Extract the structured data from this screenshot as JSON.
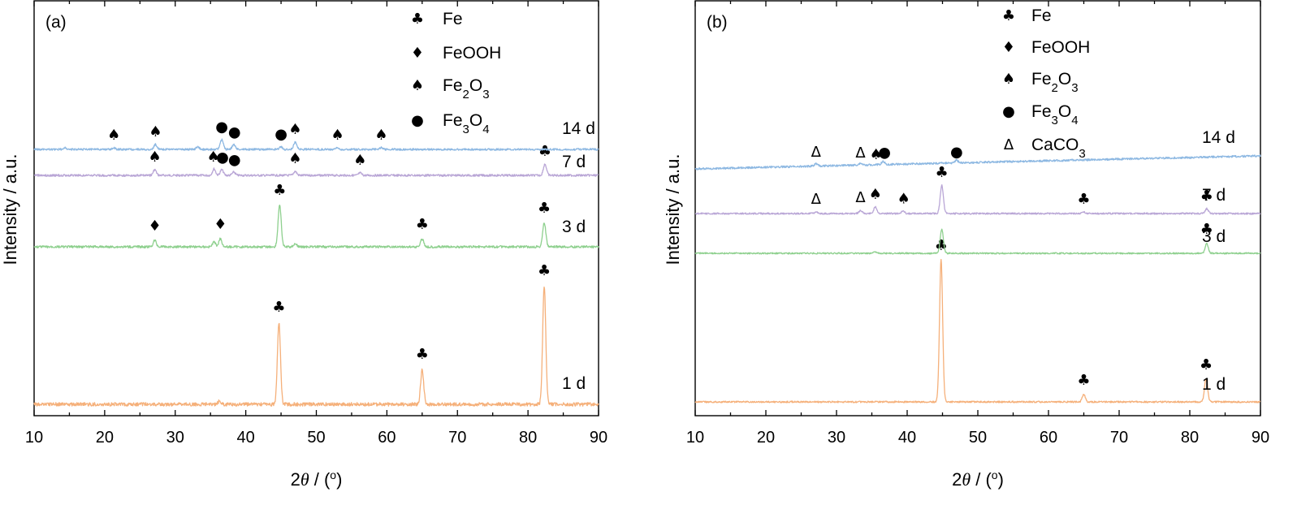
{
  "chart_data": [
    {
      "panel_label": "(a)",
      "type": "line",
      "xlabel_main": "2",
      "xlabel_theta": "θ",
      "xlabel_unit": " / (",
      "xlabel_deg": "o",
      "xlabel_close": ")",
      "ylabel": "Intensity / a.u.",
      "xlim": [
        10,
        90
      ],
      "xticks": [
        "10",
        "20",
        "30",
        "40",
        "50",
        "60",
        "70",
        "80",
        "90"
      ],
      "y_ticks_shown": false,
      "grid": false,
      "legend_placement": "top-center",
      "legend": [
        {
          "symbol": "♣",
          "text": "Fe",
          "sub": []
        },
        {
          "symbol": "♦",
          "text": "FeOOH",
          "sub": []
        },
        {
          "symbol": "♠",
          "text": "Fe2O3",
          "sub": [
            [
              "Fe",
              ""
            ],
            [
              "2",
              "s"
            ],
            [
              "O",
              ""
            ],
            [
              "3",
              "s"
            ]
          ]
        },
        {
          "symbol": "●",
          "text": "Fe3O4",
          "sub": [
            [
              "Fe",
              ""
            ],
            [
              "3",
              "s"
            ],
            [
              "O",
              ""
            ],
            [
              "4",
              "s"
            ]
          ]
        }
      ],
      "series": [
        {
          "name": "1 d",
          "color": "#F5B07A",
          "offset": 0,
          "peaks": [
            [
              36.3,
              4
            ],
            [
              44.7,
              100
            ],
            [
              65.0,
              42
            ],
            [
              82.3,
              145
            ]
          ],
          "markers": [
            [
              44.7,
              "♣"
            ],
            [
              65.0,
              "♣"
            ],
            [
              82.3,
              "♣"
            ]
          ]
        },
        {
          "name": "3 d",
          "color": "#8ED08E",
          "offset": 0,
          "peaks": [
            [
              27.1,
              8
            ],
            [
              35.5,
              6
            ],
            [
              36.4,
              10
            ],
            [
              44.8,
              52
            ],
            [
              47.0,
              4
            ],
            [
              65.0,
              10
            ],
            [
              82.3,
              30
            ]
          ],
          "markers": [
            [
              27.1,
              "♦"
            ],
            [
              36.4,
              "♦"
            ],
            [
              44.8,
              "♣"
            ],
            [
              65.0,
              "♣"
            ],
            [
              82.3,
              "♣"
            ]
          ]
        },
        {
          "name": "7 d",
          "color": "#B9A6D6",
          "offset": 0,
          "peaks": [
            [
              27.1,
              7
            ],
            [
              35.5,
              8
            ],
            [
              36.6,
              7
            ],
            [
              38.3,
              4
            ],
            [
              47.0,
              5
            ],
            [
              56.2,
              3
            ],
            [
              82.4,
              14
            ]
          ],
          "markers": [
            [
              27.1,
              "♠"
            ],
            [
              35.4,
              "♠"
            ],
            [
              36.7,
              "●"
            ],
            [
              38.4,
              "●"
            ],
            [
              47.0,
              "♠"
            ],
            [
              56.2,
              "♠"
            ],
            [
              82.4,
              "♣"
            ]
          ]
        },
        {
          "name": "14 d",
          "color": "#8DB8E2",
          "offset": 0,
          "peaks": [
            [
              14.4,
              2
            ],
            [
              21.3,
              2
            ],
            [
              27.2,
              6
            ],
            [
              33.2,
              3
            ],
            [
              36.6,
              12
            ],
            [
              38.3,
              6
            ],
            [
              45.0,
              3
            ],
            [
              47.0,
              9
            ],
            [
              53.0,
              2
            ],
            [
              59.2,
              2
            ]
          ],
          "markers": [
            [
              21.3,
              "♠"
            ],
            [
              27.2,
              "♠"
            ],
            [
              36.6,
              "●"
            ],
            [
              38.4,
              "●"
            ],
            [
              45.0,
              "●"
            ],
            [
              47.0,
              "♠"
            ],
            [
              53.0,
              "♠"
            ],
            [
              59.2,
              "♠"
            ]
          ]
        }
      ]
    },
    {
      "panel_label": "(b)",
      "type": "line",
      "xlabel_main": "2",
      "xlabel_theta": "θ",
      "xlabel_unit": " / (",
      "xlabel_deg": "o",
      "xlabel_close": ")",
      "ylabel": "Intensity / a.u.",
      "xlim": [
        10,
        90
      ],
      "xticks": [
        "10",
        "20",
        "30",
        "40",
        "50",
        "60",
        "70",
        "80",
        "90"
      ],
      "y_ticks_shown": false,
      "grid": false,
      "legend_placement": "top-center",
      "legend": [
        {
          "symbol": "♣",
          "text": "Fe",
          "sub": []
        },
        {
          "symbol": "♦",
          "text": "FeOOH",
          "sub": []
        },
        {
          "symbol": "♠",
          "text": "Fe2O3",
          "sub": [
            [
              "Fe",
              ""
            ],
            [
              "2",
              "s"
            ],
            [
              "O",
              ""
            ],
            [
              "3",
              "s"
            ]
          ]
        },
        {
          "symbol": "●",
          "text": "Fe3O4",
          "sub": [
            [
              "Fe",
              ""
            ],
            [
              "3",
              "s"
            ],
            [
              "O",
              ""
            ],
            [
              "4",
              "s"
            ]
          ]
        },
        {
          "symbol": "Δ",
          "text": "CaCO3",
          "sub": [
            [
              "CaCO",
              ""
            ],
            [
              "3",
              "s"
            ]
          ]
        }
      ],
      "series": [
        {
          "name": "1 d",
          "color": "#F5B07A",
          "offset": 0,
          "peaks": [
            [
              44.8,
              175
            ],
            [
              65.0,
              9
            ],
            [
              82.3,
              28
            ]
          ],
          "markers": [
            [
              44.8,
              "♣"
            ],
            [
              65.0,
              "♣"
            ],
            [
              82.3,
              "♣"
            ]
          ]
        },
        {
          "name": "3 d",
          "color": "#8ED08E",
          "offset": 0,
          "peaks": [
            [
              35.5,
              2
            ],
            [
              44.9,
              30
            ],
            [
              82.4,
              12
            ]
          ],
          "markers": [
            [
              82.4,
              "♣"
            ]
          ]
        },
        {
          "name": "7 d",
          "color": "#B9A6D6",
          "offset": 0,
          "peaks": [
            [
              27.1,
              2
            ],
            [
              33.4,
              4
            ],
            [
              35.5,
              8
            ],
            [
              39.4,
              3
            ],
            [
              44.9,
              35
            ],
            [
              65.0,
              2
            ],
            [
              82.4,
              6
            ]
          ],
          "markers": [
            [
              27.1,
              "Δ"
            ],
            [
              33.4,
              "Δ"
            ],
            [
              35.5,
              "♠"
            ],
            [
              39.5,
              "♠"
            ],
            [
              44.9,
              "♣"
            ],
            [
              65.0,
              "♣"
            ],
            [
              82.4,
              "♣"
            ]
          ]
        },
        {
          "name": "14 d",
          "color": "#8DB8E2",
          "offset": 0,
          "peaks": [
            [
              27.1,
              3
            ],
            [
              33.4,
              2
            ],
            [
              36.6,
              4
            ],
            [
              47.0,
              3
            ]
          ],
          "markers": [
            [
              27.1,
              "Δ"
            ],
            [
              33.4,
              "Δ"
            ],
            [
              35.6,
              "♠"
            ],
            [
              36.8,
              "●"
            ],
            [
              47.0,
              "●"
            ]
          ]
        }
      ]
    }
  ]
}
